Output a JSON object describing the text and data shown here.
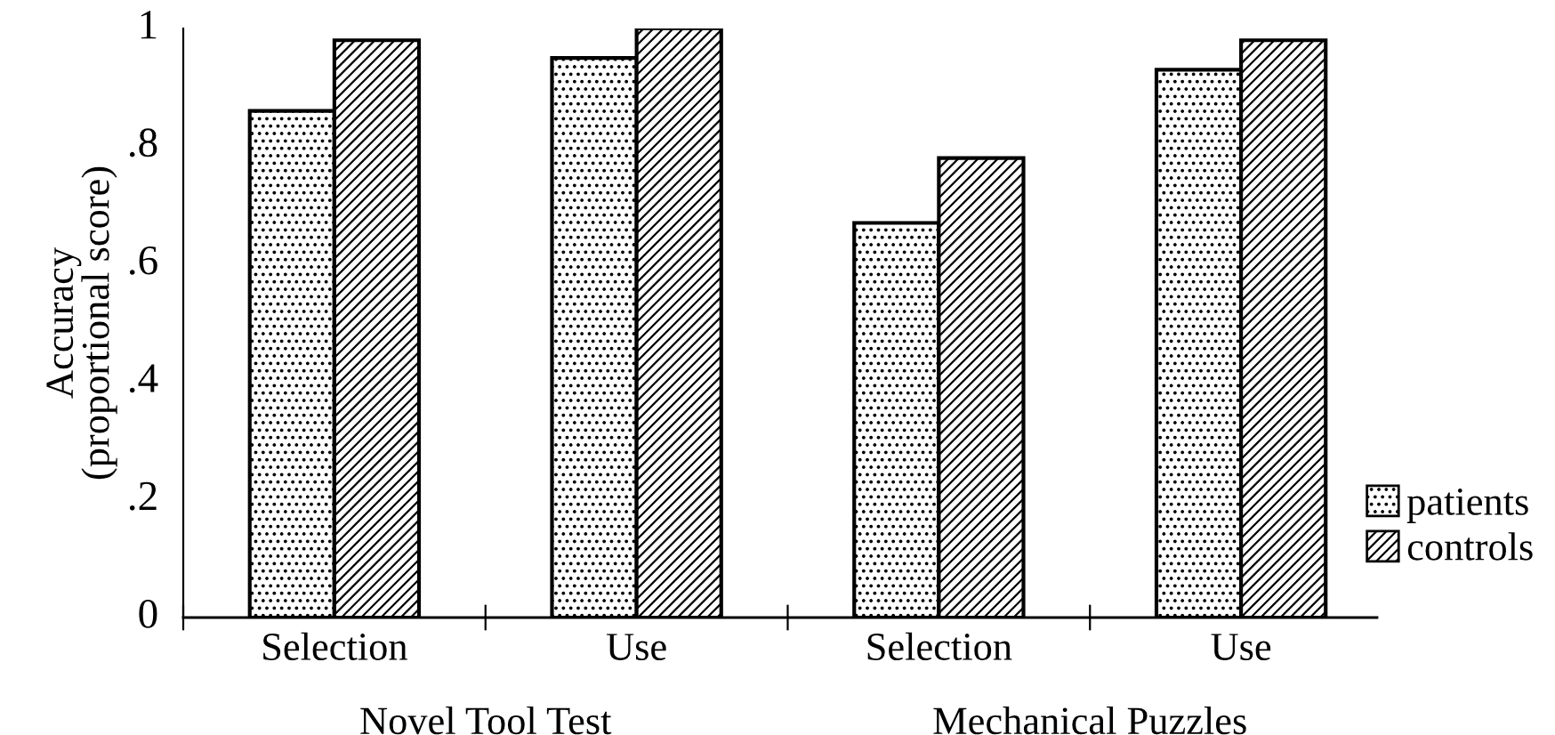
{
  "chart_data": {
    "type": "bar",
    "ylabel": "Accuracy\n(proportional score)",
    "categories": [
      "Selection",
      "Use",
      "Selection",
      "Use"
    ],
    "series": [
      {
        "name": "patients",
        "color": "#000000",
        "values": [
          0.86,
          0.95,
          0.67,
          0.93
        ]
      },
      {
        "name": "controls",
        "color": "#000000",
        "values": [
          0.98,
          1.0,
          0.78,
          0.98
        ]
      }
    ],
    "annotations": [
      "Novel Tool Test",
      "Mechanical Puzzles"
    ],
    "ylim": [
      0,
      1
    ],
    "yticks": [
      0,
      {
        "value": 0.2,
        "label": ".2"
      },
      {
        "value": 0.4,
        "label": ".4"
      },
      {
        "value": 0.6,
        "label": ".6"
      },
      {
        "value": 0.8,
        "label": ".8"
      },
      1
    ],
    "grid": false,
    "legend": "bottom right"
  }
}
